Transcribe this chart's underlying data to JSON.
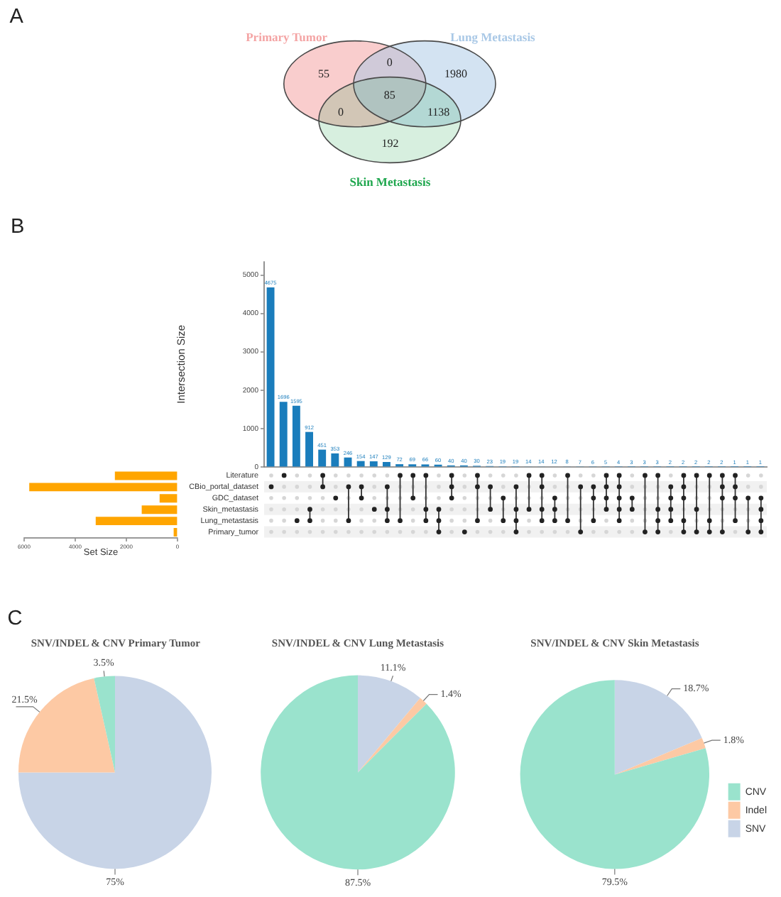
{
  "chart_data": [
    {
      "type": "other",
      "annotations": [
        "A",
        "55",
        "0",
        "1980",
        "0",
        "85",
        "1138",
        "192"
      ],
      "series": [
        {
          "name": "Primary Tumor",
          "color": "#f4a4a4"
        },
        {
          "name": "Lung Metastasis",
          "color": "#a9c8e6"
        },
        {
          "name": "Skin Metastasis",
          "color": "#1fa74e"
        }
      ]
    },
    {
      "type": "bar",
      "annotations": [
        "B"
      ],
      "ylabel": "Intersection Size",
      "categories": [
        null,
        null,
        null,
        null,
        null,
        null,
        null,
        null,
        null,
        null,
        null,
        null,
        null,
        null,
        null,
        null,
        null,
        null,
        null,
        null,
        null,
        null,
        null,
        null,
        null,
        null,
        null,
        null,
        null,
        null,
        null,
        null,
        null,
        null,
        null,
        null,
        null,
        null,
        null
      ],
      "values": [
        4675,
        1696,
        1595,
        912,
        451,
        353,
        246,
        154,
        147,
        129,
        72,
        69,
        66,
        60,
        40,
        40,
        30,
        23,
        19,
        19,
        14,
        14,
        12,
        8,
        7,
        6,
        5,
        4,
        3,
        3,
        3,
        2,
        2,
        2,
        2,
        2,
        1,
        1,
        1
      ],
      "color": "#1a7dbc",
      "ylim": [
        0,
        5350
      ],
      "yticks": [
        0,
        1000,
        2000,
        3000,
        4000,
        5000
      ],
      "data_labels": true,
      "tick_labels": "y"
    },
    {
      "type": "bar",
      "orientation": "horizontal",
      "xlabel": "Set Size",
      "categories": [
        "Literature",
        "CBio_portal_dataset",
        "GDC_dataset",
        "Skin_metastasis",
        "Lung_metastasis",
        "Primary_tumor"
      ],
      "values": [
        2450,
        5800,
        700,
        1400,
        3200,
        150
      ],
      "color": "#ffa500",
      "xlim": [
        6000,
        0
      ],
      "xticks": [
        6000,
        4000,
        2000,
        0
      ]
    },
    {
      "type": "pie",
      "annotations": [
        "C"
      ],
      "title": "SNV/INDEL & CNV Primary Tumor",
      "categories": [
        null,
        null,
        null
      ],
      "values": [
        3.5,
        21.5,
        75
      ],
      "colors": [
        "#9ae3cd",
        "#fdc9a4",
        "#c8d4e7"
      ],
      "value_labels": [
        "3.5%",
        "21.5%",
        "75%"
      ]
    },
    {
      "type": "pie",
      "title": "SNV/INDEL & CNV Lung Metastasis",
      "categories": [
        null,
        null,
        null
      ],
      "values": [
        87.5,
        1.4,
        11.1
      ],
      "colors": [
        "#9ae3cd",
        "#fdc9a4",
        "#c8d4e7"
      ],
      "value_labels": [
        "87.5%",
        "1.4%",
        "11.1%"
      ]
    },
    {
      "type": "pie",
      "title": "SNV/INDEL & CNV Skin Metastasis",
      "categories": [
        "CNV",
        "Indel",
        "SNV"
      ],
      "values": [
        79.5,
        1.8,
        18.7
      ],
      "colors": [
        "#9ae3cd",
        "#fdc9a4",
        "#c8d4e7"
      ],
      "value_labels": [
        "79.5%",
        "1.8%",
        "18.7%"
      ],
      "legend": "right"
    }
  ]
}
